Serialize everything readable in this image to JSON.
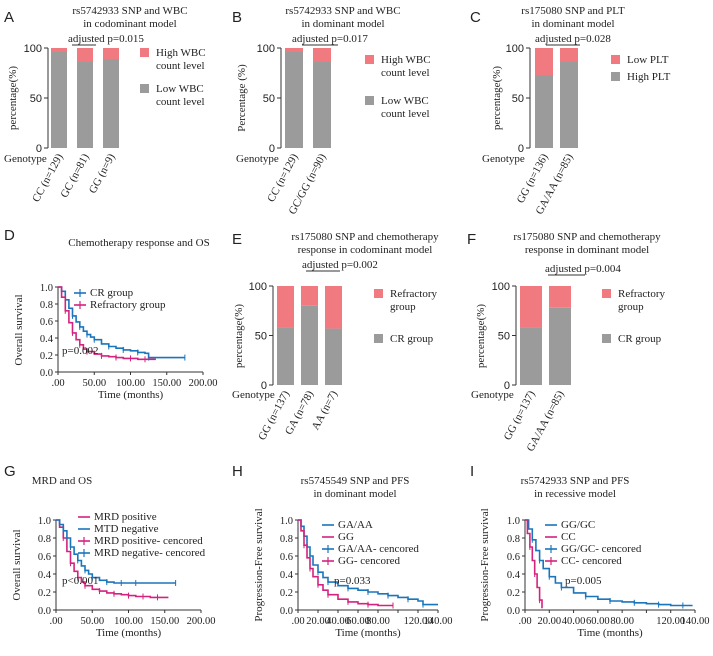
{
  "colors": {
    "gray": "#9b9b9b",
    "pink": "#f07a80",
    "blue": "#1b75bb",
    "magenta": "#d4237e",
    "axis": "#333333"
  },
  "chart_data": [
    {
      "id": "A",
      "type": "bar",
      "stacked": true,
      "title": [
        "rs5742933 SNP and WBC",
        "in codominant model"
      ],
      "ylabel": "percentage(%)",
      "xlabel": "Genotype",
      "ylim": [
        0,
        100
      ],
      "yticks": [
        0,
        50,
        100
      ],
      "categories": [
        "CC (n=129)",
        "GC (n=81)",
        "GG (n=9)"
      ],
      "series": [
        {
          "name": "Low WBC count level",
          "color": "gray",
          "values": [
            96,
            86,
            89
          ]
        },
        {
          "name": "High WBC count level",
          "color": "pink",
          "values": [
            4,
            14,
            11
          ]
        }
      ],
      "legend": [
        "High WBC count level",
        "Low WBC count level"
      ],
      "annotation": "adjusted p=0.015"
    },
    {
      "id": "B",
      "type": "bar",
      "stacked": true,
      "title": [
        "rs5742933 SNP and WBC",
        "in dominant model"
      ],
      "ylabel": "Percentage (%)",
      "xlabel": "Genotype",
      "ylim": [
        0,
        100
      ],
      "yticks": [
        0,
        50,
        100
      ],
      "categories": [
        "CC (n=129)",
        "GC/GG (n=90)"
      ],
      "series": [
        {
          "name": "Low WBC count level",
          "color": "gray",
          "values": [
            96,
            86
          ]
        },
        {
          "name": "High WBC count level",
          "color": "pink",
          "values": [
            4,
            14
          ]
        }
      ],
      "legend": [
        "High WBC count level",
        "Low WBC count level"
      ],
      "annotation": "adjusted p=0.017"
    },
    {
      "id": "C",
      "type": "bar",
      "stacked": true,
      "title": [
        "rs175080 SNP and PLT",
        "in dominant model"
      ],
      "ylabel": "percentage(%)",
      "xlabel": "Genotype",
      "ylim": [
        0,
        100
      ],
      "yticks": [
        0,
        50,
        100
      ],
      "categories": [
        "GG (n=136)",
        "GA/AA (n=85)"
      ],
      "series": [
        {
          "name": "High PLT",
          "color": "gray",
          "values": [
            73,
            86
          ]
        },
        {
          "name": "Low PLT",
          "color": "pink",
          "values": [
            27,
            14
          ]
        }
      ],
      "legend": [
        "Low PLT",
        "High PLT"
      ],
      "annotation": "adjusted p=0.028"
    },
    {
      "id": "D",
      "type": "line",
      "subtype": "survival",
      "title": [
        "Chemotherapy response and OS"
      ],
      "ylabel": "Overall survival",
      "xlabel": "Time (months)",
      "xlim": [
        0,
        200
      ],
      "ylim": [
        0,
        1
      ],
      "xticks": [
        ".00",
        "50.00",
        "100.00",
        "150.00",
        "200.00"
      ],
      "yticks": [
        "0.0",
        "0.2",
        "0.4",
        "0.6",
        "0.8",
        "1.0"
      ],
      "series": [
        {
          "name": "CR group",
          "color": "blue",
          "x": [
            0,
            5,
            10,
            15,
            20,
            25,
            30,
            35,
            40,
            45,
            50,
            60,
            70,
            80,
            90,
            100,
            110,
            120,
            125,
            150,
            175
          ],
          "y": [
            1,
            0.95,
            0.85,
            0.75,
            0.66,
            0.59,
            0.53,
            0.48,
            0.44,
            0.41,
            0.38,
            0.33,
            0.3,
            0.28,
            0.26,
            0.25,
            0.23,
            0.22,
            0.17,
            0.17,
            0.17
          ]
        },
        {
          "name": "Refractory group",
          "color": "magenta",
          "x": [
            0,
            5,
            10,
            15,
            20,
            25,
            30,
            35,
            40,
            50,
            60,
            70,
            80,
            90,
            100,
            110,
            120,
            135
          ],
          "y": [
            1,
            0.88,
            0.72,
            0.58,
            0.46,
            0.38,
            0.32,
            0.27,
            0.24,
            0.21,
            0.19,
            0.18,
            0.17,
            0.16,
            0.16,
            0.15,
            0.15,
            0.15
          ]
        }
      ],
      "legend": [
        "CR group",
        "Refractory group"
      ],
      "annotation": "p=0.002"
    },
    {
      "id": "E",
      "type": "bar",
      "stacked": true,
      "title": [
        "rs175080 SNP and  chemotherapy",
        "response in codominant model"
      ],
      "ylabel": "percentage(%)",
      "xlabel": "Genotype",
      "ylim": [
        0,
        100
      ],
      "yticks": [
        0,
        50,
        100
      ],
      "categories": [
        "GG (n=137)",
        "GA (n=78)",
        "AA (n=7)"
      ],
      "series": [
        {
          "name": "CR group",
          "color": "gray",
          "values": [
            58,
            80,
            57
          ]
        },
        {
          "name": "Refractory group",
          "color": "pink",
          "values": [
            42,
            20,
            43
          ]
        }
      ],
      "legend": [
        "Refractory group",
        "CR group"
      ],
      "annotation": "adjusted p=0.002"
    },
    {
      "id": "F",
      "type": "bar",
      "stacked": true,
      "title": [
        "rs175080 SNP and  chemotherapy",
        "response in dominant model"
      ],
      "ylabel": "percentage(%)",
      "xlabel": "Genotype",
      "ylim": [
        0,
        100
      ],
      "yticks": [
        0,
        50,
        100
      ],
      "categories": [
        "GG (n=137)",
        "GA/AA (n=85)"
      ],
      "series": [
        {
          "name": "CR group",
          "color": "gray",
          "values": [
            58,
            78
          ]
        },
        {
          "name": "Refractory group",
          "color": "pink",
          "values": [
            42,
            22
          ]
        }
      ],
      "legend": [
        "Refractory group",
        "CR group"
      ],
      "annotation": "adjusted p=0.004"
    },
    {
      "id": "G",
      "type": "line",
      "subtype": "survival",
      "title": [
        "MRD  and OS"
      ],
      "ylabel": "Overall survival",
      "xlabel": "Time (months)",
      "xlim": [
        0,
        200
      ],
      "ylim": [
        0,
        1
      ],
      "xticks": [
        ".00",
        "50.00",
        "100.00",
        "150.00",
        "200.00"
      ],
      "yticks": [
        "0.0",
        "0.2",
        "0.4",
        "0.6",
        "0.8",
        "1.0"
      ],
      "series": [
        {
          "name": "MRD positive",
          "color": "magenta",
          "x": [
            0,
            5,
            10,
            15,
            20,
            25,
            30,
            35,
            40,
            50,
            60,
            70,
            80,
            90,
            100,
            110,
            120,
            130,
            140,
            155
          ],
          "y": [
            1,
            0.92,
            0.8,
            0.65,
            0.52,
            0.43,
            0.36,
            0.31,
            0.27,
            0.23,
            0.21,
            0.19,
            0.18,
            0.17,
            0.16,
            0.15,
            0.15,
            0.14,
            0.14,
            0.14
          ]
        },
        {
          "name": "MTD negative",
          "color": "blue",
          "x": [
            0,
            5,
            10,
            15,
            20,
            25,
            30,
            35,
            40,
            45,
            50,
            60,
            70,
            80,
            90,
            100,
            110,
            130,
            165
          ],
          "y": [
            1,
            0.95,
            0.88,
            0.8,
            0.7,
            0.62,
            0.55,
            0.49,
            0.44,
            0.4,
            0.36,
            0.33,
            0.31,
            0.3,
            0.3,
            0.3,
            0.3,
            0.3,
            0.3
          ]
        }
      ],
      "legend": [
        "MRD positive",
        "MTD negative",
        "MRD positive- cencored",
        "MRD negative- cencored"
      ],
      "annotation": "p<0.001"
    },
    {
      "id": "H",
      "type": "line",
      "subtype": "survival",
      "title": [
        "rs5745549 SNP and PFS",
        "in dominant model"
      ],
      "ylabel": "Progression-Free survival",
      "xlabel": "Time (months)",
      "xlim": [
        0,
        140
      ],
      "ylim": [
        0,
        1
      ],
      "xticks": [
        ".00",
        "20.00",
        "40.00",
        "60.00",
        "80.00",
        "100.00",
        "120.00",
        "140.00"
      ],
      "yticks": [
        "0.0",
        "0.2",
        "0.4",
        "0.6",
        "0.8",
        "1.0"
      ],
      "series": [
        {
          "name": "GA/AA",
          "color": "blue",
          "x": [
            0,
            3,
            6,
            9,
            12,
            15,
            20,
            25,
            30,
            40,
            50,
            60,
            70,
            80,
            90,
            100,
            110,
            120,
            125,
            140
          ],
          "y": [
            1,
            0.93,
            0.82,
            0.7,
            0.6,
            0.5,
            0.42,
            0.36,
            0.31,
            0.27,
            0.24,
            0.22,
            0.2,
            0.18,
            0.16,
            0.14,
            0.12,
            0.1,
            0.06,
            0.06
          ]
        },
        {
          "name": "GG",
          "color": "magenta",
          "x": [
            0,
            3,
            6,
            9,
            12,
            15,
            20,
            25,
            30,
            40,
            50,
            60,
            70,
            80,
            95
          ],
          "y": [
            1,
            0.88,
            0.72,
            0.58,
            0.46,
            0.37,
            0.28,
            0.22,
            0.17,
            0.12,
            0.09,
            0.07,
            0.06,
            0.05,
            0.05
          ]
        }
      ],
      "legend": [
        "GA/AA",
        "GG",
        "GA/AA- cencored",
        "GG- cencored"
      ],
      "annotation": "p=0.033"
    },
    {
      "id": "I",
      "type": "line",
      "subtype": "survival",
      "title": [
        "rs5742933 SNP and PFS",
        "in recessive model"
      ],
      "ylabel": "Progression-Free survival",
      "xlabel": "Time (months)",
      "xlim": [
        0,
        140
      ],
      "ylim": [
        0,
        1
      ],
      "xticks": [
        ".00",
        "20.00",
        "40.00",
        "60.00",
        "80.00",
        "100.00",
        "120.00",
        "140.00"
      ],
      "yticks": [
        "0.0",
        "0.2",
        "0.4",
        "0.6",
        "0.8",
        "1.0"
      ],
      "series": [
        {
          "name": "GG/GC",
          "color": "blue",
          "x": [
            0,
            3,
            6,
            9,
            12,
            15,
            20,
            25,
            30,
            40,
            50,
            60,
            70,
            80,
            90,
            100,
            110,
            120,
            130,
            138
          ],
          "y": [
            1,
            0.9,
            0.78,
            0.66,
            0.55,
            0.46,
            0.37,
            0.3,
            0.25,
            0.19,
            0.15,
            0.12,
            0.1,
            0.09,
            0.08,
            0.07,
            0.06,
            0.05,
            0.05,
            0.05
          ]
        },
        {
          "name": "CC",
          "color": "magenta",
          "x": [
            0,
            2,
            4,
            6,
            8,
            10,
            12,
            14
          ],
          "y": [
            1,
            0.85,
            0.7,
            0.55,
            0.4,
            0.25,
            0.11,
            0.02
          ]
        }
      ],
      "legend": [
        "GG/GC",
        "CC",
        "GG/GC- cencored",
        "CC- cencored"
      ],
      "annotation": "p=0.005"
    }
  ]
}
